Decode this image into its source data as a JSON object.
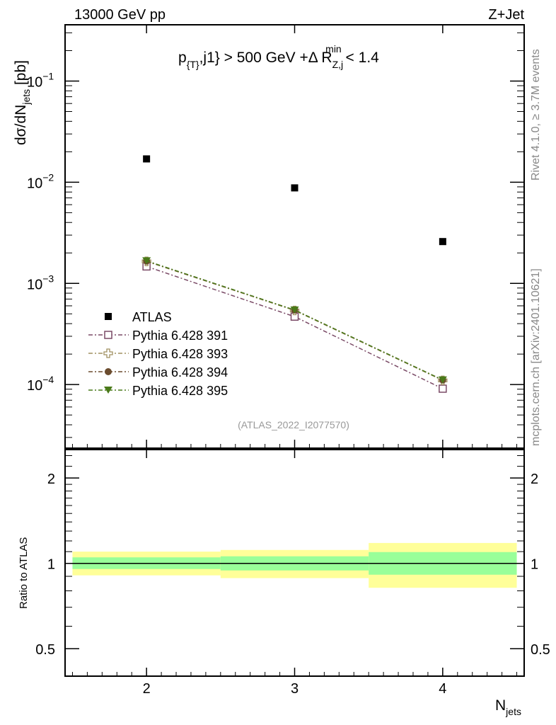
{
  "header": {
    "left": "13000 GeV pp",
    "right": "Z+Jet"
  },
  "side_labels": {
    "rivet": "Rivet 4.1.0, ≥ 3.7M events",
    "mcplots": "mcplots.cern.ch [arXiv:2401.10621]"
  },
  "chart_data": {
    "type": "scatter",
    "title": "p_{T},j1} > 500 GeV +Δ R_{Z,j}^{min} < 1.4",
    "title_parts": {
      "p": "p",
      "sub1": "{T}",
      "mid": ",j1} > 500 GeV +Δ R",
      "sub2": "Z,j",
      "sup2": "min",
      "end": " < 1.4"
    },
    "analysis_id": "(ATLAS_2022_I2077570)",
    "xlabel": "N",
    "xlabel_sub": "jets",
    "ylabel": "dσ/dN",
    "ylabel_sub": "jets",
    "ylabel_unit": " [pb]",
    "ratio_ylabel": "Ratio to ATLAS",
    "xlim": [
      1.45,
      4.55
    ],
    "ylim": [
      2.35e-05,
      0.36
    ],
    "yscale": "log",
    "ratio_ylim": [
      0.4,
      2.52
    ],
    "x_ticks": [
      {
        "v": 2,
        "label": "2"
      },
      {
        "v": 3,
        "label": "3"
      },
      {
        "v": 4,
        "label": "4"
      }
    ],
    "y_ticks": [
      {
        "v": 0.1,
        "base": "10",
        "exp": "−1"
      },
      {
        "v": 0.01,
        "base": "10",
        "exp": "−2"
      },
      {
        "v": 0.001,
        "base": "10",
        "exp": "−3"
      },
      {
        "v": 0.0001,
        "base": "10",
        "exp": "−4"
      }
    ],
    "ratio_ticks": [
      {
        "v": 2,
        "label": "2"
      },
      {
        "v": 1,
        "label": "1"
      },
      {
        "v": 0.5,
        "label": "0.5"
      }
    ],
    "data": {
      "name": "ATLAS",
      "x": [
        2,
        3,
        4
      ],
      "y": [
        0.017,
        0.00879,
        0.00259
      ],
      "color": "#000000"
    },
    "series": [
      {
        "name": "Pythia 6.428 391",
        "x": [
          2,
          3,
          4
        ],
        "y": [
          0.00147,
          0.000469,
          9.1e-05
        ],
        "color": "#7a4a66",
        "marker": "open-square"
      },
      {
        "name": "Pythia 6.428 393",
        "x": [
          2,
          3,
          4
        ],
        "y": [
          0.00165,
          0.00054,
          0.00011
        ],
        "color": "#a09060",
        "marker": "open-cross"
      },
      {
        "name": "Pythia 6.428 394",
        "x": [
          2,
          3,
          4
        ],
        "y": [
          0.00166,
          0.000545,
          0.000111
        ],
        "color": "#6b4c2e",
        "marker": "circle"
      },
      {
        "name": "Pythia 6.428 395",
        "x": [
          2,
          3,
          4
        ],
        "y": [
          0.00167,
          0.000545,
          0.000111
        ],
        "color": "#4a7a1a",
        "marker": "down-triangle"
      }
    ],
    "ratio_bands": [
      {
        "xlo": 1.5,
        "xhi": 2.5,
        "stat_lo": 0.955,
        "stat_hi": 1.05,
        "tot_lo": 0.907,
        "tot_hi": 1.1
      },
      {
        "xlo": 2.5,
        "xhi": 3.5,
        "stat_lo": 0.944,
        "stat_hi": 1.059,
        "tot_lo": 0.887,
        "tot_hi": 1.115
      },
      {
        "xlo": 3.5,
        "xhi": 4.5,
        "stat_lo": 0.912,
        "stat_hi": 1.096,
        "tot_lo": 0.82,
        "tot_hi": 1.18
      }
    ],
    "band_colors": {
      "stat": "#99ff99",
      "total": "#ffff99"
    }
  }
}
